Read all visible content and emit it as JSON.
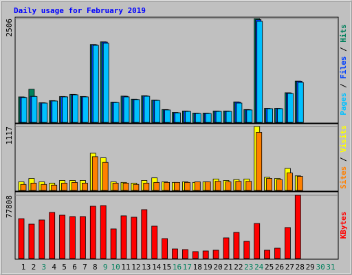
{
  "title": "Daily usage for February 2019",
  "legend_separator": " / ",
  "chart_data": [
    {
      "type": "bar",
      "ylim": [
        0,
        2506
      ],
      "yticks": [
        2506
      ],
      "series": [
        {
          "name": "Hits",
          "color": "#00805c",
          "values": [
            615,
            800,
            475,
            525,
            625,
            675,
            625,
            1880,
            1945,
            490,
            635,
            560,
            645,
            540,
            310,
            240,
            275,
            225,
            225,
            275,
            275,
            495,
            310,
            2506,
            340,
            340,
            715,
            995,
            null,
            null,
            null
          ]
        },
        {
          "name": "Files",
          "color": "#0040ff",
          "values": [
            610,
            630,
            470,
            520,
            620,
            670,
            620,
            1875,
            1940,
            485,
            630,
            555,
            640,
            535,
            305,
            235,
            270,
            220,
            220,
            270,
            270,
            490,
            305,
            2480,
            335,
            335,
            710,
            990,
            null,
            null,
            null
          ]
        },
        {
          "name": "Pages",
          "color": "#00c0ff",
          "values": [
            600,
            625,
            465,
            515,
            615,
            665,
            615,
            1860,
            1910,
            480,
            615,
            550,
            630,
            530,
            300,
            230,
            265,
            215,
            215,
            265,
            265,
            465,
            300,
            2440,
            330,
            330,
            700,
            965,
            null,
            null,
            null
          ]
        }
      ]
    },
    {
      "type": "bar",
      "ylim": [
        0,
        1117
      ],
      "yticks": [
        1117
      ],
      "series": [
        {
          "name": "Visits",
          "color": "#ffff00",
          "values": [
            150,
            210,
            150,
            128,
            175,
            175,
            175,
            650,
            570,
            150,
            140,
            128,
            175,
            220,
            150,
            140,
            150,
            140,
            150,
            200,
            175,
            190,
            200,
            1117,
            230,
            210,
            385,
            255,
            null,
            null,
            null
          ]
        },
        {
          "name": "Sites",
          "color": "#ff8000",
          "values": [
            105,
            128,
            105,
            93,
            128,
            140,
            128,
            590,
            490,
            128,
            128,
            105,
            128,
            140,
            140,
            140,
            140,
            150,
            150,
            160,
            150,
            160,
            160,
            1015,
            210,
            190,
            305,
            245,
            null,
            null,
            null
          ]
        }
      ]
    },
    {
      "type": "bar",
      "ylim": [
        0,
        77808
      ],
      "yticks": [
        77808
      ],
      "categories": [
        "1",
        "2",
        "3",
        "4",
        "5",
        "6",
        "7",
        "8",
        "9",
        "10",
        "11",
        "12",
        "13",
        "14",
        "15",
        "16",
        "17",
        "18",
        "19",
        "20",
        "21",
        "22",
        "23",
        "24",
        "25",
        "26",
        "27",
        "28",
        "29",
        "30",
        "31"
      ],
      "tick_label_colors": [
        "#000000",
        "#000000",
        "#00805c",
        "#000000",
        "#000000",
        "#000000",
        "#000000",
        "#000000",
        "#00805c",
        "#00805c",
        "#000000",
        "#000000",
        "#000000",
        "#000000",
        "#000000",
        "#00805c",
        "#00805c",
        "#000000",
        "#000000",
        "#000000",
        "#000000",
        "#000000",
        "#00805c",
        "#00805c",
        "#000000",
        "#000000",
        "#000000",
        "#000000",
        "#000000",
        "#00805c",
        "#00805c"
      ],
      "series": [
        {
          "name": "KBytes",
          "color": "#ff0000",
          "values": [
            49000,
            42300,
            47400,
            56700,
            53300,
            51600,
            51600,
            64300,
            65100,
            36400,
            52500,
            50800,
            60100,
            39800,
            24500,
            11800,
            11000,
            8500,
            9300,
            10200,
            25400,
            32100,
            21100,
            43100,
            10200,
            12700,
            38100,
            77808,
            null,
            null,
            null
          ]
        }
      ]
    }
  ]
}
